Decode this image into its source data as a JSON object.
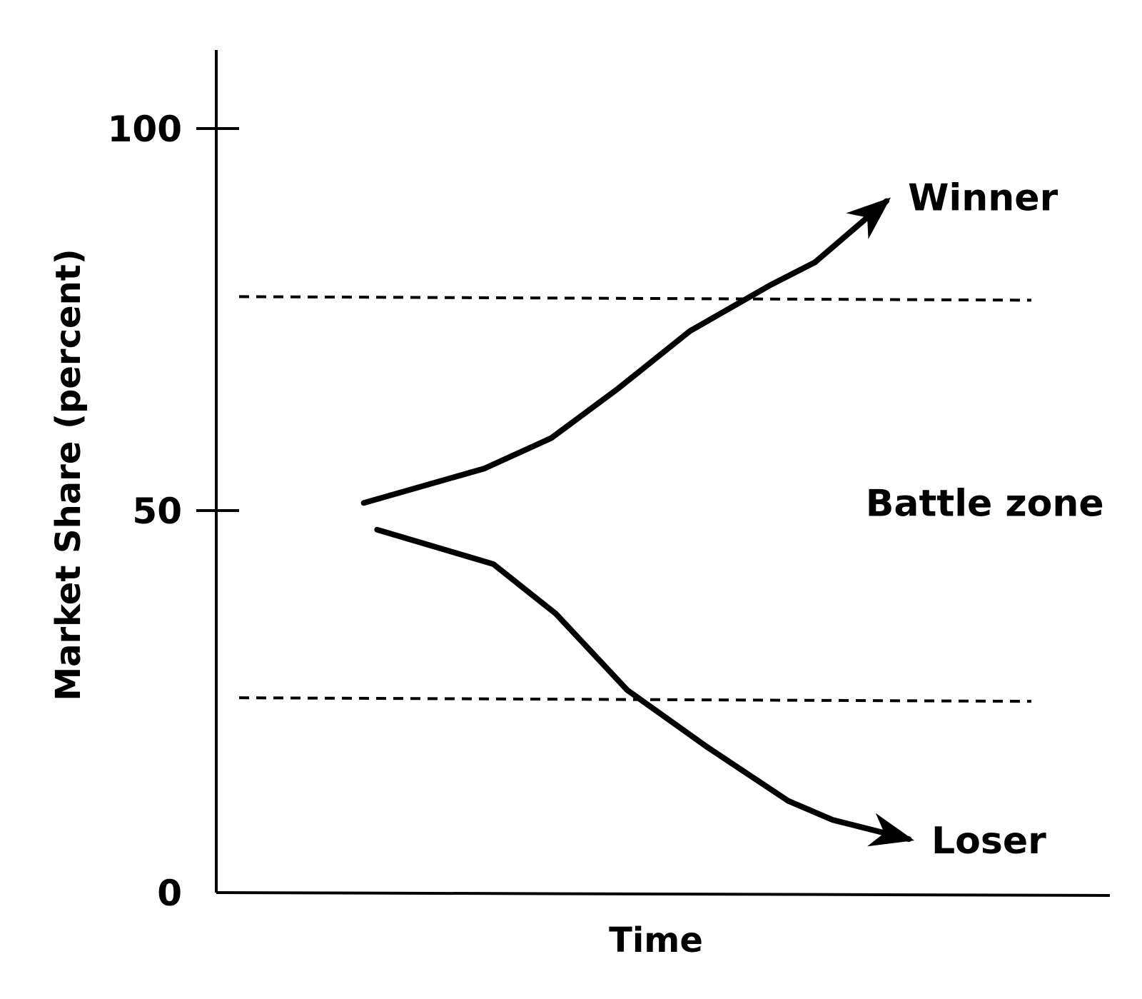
{
  "chart_data": {
    "type": "line",
    "title": "",
    "xlabel": "Time",
    "ylabel": "Market Share (percent)",
    "ylim": [
      0,
      100
    ],
    "xlim": [
      0,
      10
    ],
    "y_ticks": [
      "0",
      "50",
      "100"
    ],
    "grid": false,
    "series": [
      {
        "name": "Winner",
        "points": [
          [
            1.65,
            51
          ],
          [
            3.0,
            55.5
          ],
          [
            3.75,
            59.5
          ],
          [
            4.5,
            66
          ],
          [
            5.3,
            73.5
          ],
          [
            6.2,
            79.5
          ],
          [
            6.7,
            82.5
          ],
          [
            7.5,
            90.5
          ]
        ]
      },
      {
        "name": "Loser",
        "points": [
          [
            1.8,
            47.5
          ],
          [
            3.1,
            43
          ],
          [
            3.8,
            36.5
          ],
          [
            4.6,
            26.5
          ],
          [
            5.5,
            19
          ],
          [
            6.4,
            12
          ],
          [
            6.9,
            9.5
          ],
          [
            7.75,
            7
          ]
        ]
      }
    ],
    "reference_lines": [
      {
        "y": 78,
        "style": "dashed"
      },
      {
        "y": 25.5,
        "style": "dashed"
      }
    ],
    "annotations": [
      {
        "text": "Battle zone",
        "x": 8.6,
        "y": 51
      }
    ],
    "legend": "none"
  }
}
